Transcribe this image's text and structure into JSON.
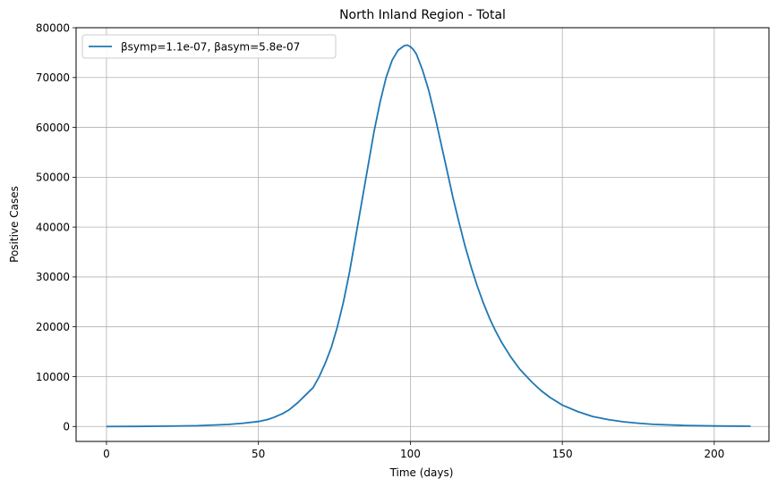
{
  "chart_data": {
    "type": "line",
    "title": "North Inland Region - Total",
    "xlabel": "Time (days)",
    "ylabel": "Positive Cases",
    "xlim": [
      -10,
      218
    ],
    "ylim": [
      -3000,
      80000
    ],
    "xticks": [
      0,
      50,
      100,
      150,
      200
    ],
    "yticks": [
      0,
      10000,
      20000,
      30000,
      40000,
      50000,
      60000,
      70000,
      80000
    ],
    "xtick_labels": [
      "0",
      "50",
      "100",
      "150",
      "200"
    ],
    "ytick_labels": [
      "0",
      "10000",
      "20000",
      "30000",
      "40000",
      "50000",
      "60000",
      "70000",
      "80000"
    ],
    "grid": true,
    "legend_position": "top-left",
    "series": [
      {
        "name": "βsymp=1.1e-07, βasym=5.8e-07",
        "color": "#1f77b4",
        "x": [
          0,
          10,
          20,
          30,
          40,
          45,
          50,
          53,
          55,
          58,
          60,
          63,
          65,
          68,
          70,
          72,
          74,
          76,
          78,
          80,
          82,
          84,
          86,
          88,
          90,
          92,
          94,
          96,
          98,
          99,
          100,
          101,
          102,
          104,
          106,
          108,
          110,
          112,
          114,
          116,
          118,
          120,
          122,
          124,
          126,
          128,
          130,
          133,
          136,
          140,
          143,
          146,
          150,
          155,
          160,
          165,
          170,
          175,
          180,
          190,
          200,
          212
        ],
        "y": [
          0,
          20,
          60,
          150,
          400,
          650,
          1000,
          1400,
          1800,
          2600,
          3300,
          4800,
          6000,
          7800,
          10000,
          12700,
          15900,
          20000,
          25000,
          31000,
          38000,
          45000,
          52000,
          59000,
          65000,
          70000,
          73500,
          75500,
          76400,
          76500,
          76200,
          75600,
          74700,
          71500,
          67500,
          62500,
          57000,
          51500,
          46000,
          41000,
          36200,
          32000,
          28200,
          24800,
          21800,
          19200,
          16900,
          14000,
          11500,
          8900,
          7200,
          5800,
          4300,
          3000,
          2000,
          1400,
          950,
          650,
          430,
          200,
          100,
          50
        ]
      }
    ]
  }
}
